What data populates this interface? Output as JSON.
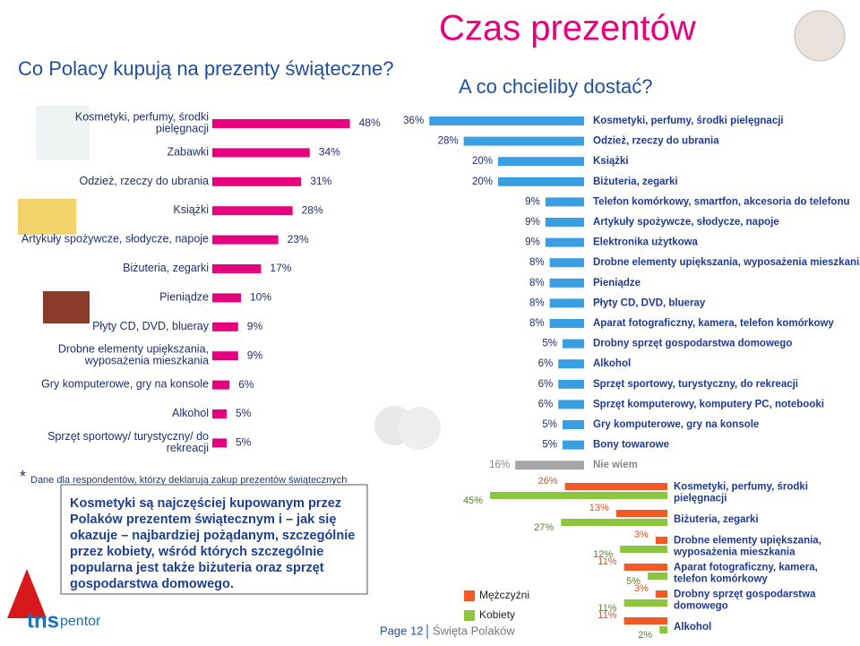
{
  "header": {
    "title": "Czas prezentów",
    "left_question": "Co Polacy kupują na prezenty świąteczne?",
    "right_question": "A co chcieliby dostać?"
  },
  "chart_data": [
    {
      "type": "bar",
      "orientation": "horizontal",
      "color": "#e5007e",
      "categories": [
        "Kosmetyki, perfumy, środki pielęgnacji",
        "Zabawki",
        "Odzież, rzeczy do ubrania",
        "Książki",
        "Artykuły spożywcze, słodycze, napoje",
        "Biżuteria, zegarki",
        "Pieniądze",
        "Płyty CD, DVD, blueray",
        "Drobne elementy upiększania, wyposażenia mieszkania",
        "Gry komputerowe, gry na konsole",
        "Alkohol",
        "Sprzęt sportowy/ turystyczny/ do rekreacji"
      ],
      "values": [
        48,
        34,
        31,
        28,
        23,
        17,
        10,
        9,
        9,
        6,
        5,
        5
      ],
      "value_labels": [
        "48%",
        "34%",
        "31%",
        "28%",
        "23%",
        "17%",
        "10%",
        "9%",
        "9%",
        "6%",
        "5%",
        "5%"
      ]
    },
    {
      "type": "bar",
      "orientation": "horizontal",
      "color": "#3a9ee2",
      "other_color": "#a6a6a6",
      "categories": [
        "Kosmetyki, perfumy, środki pielęgnacji",
        "Odzież, rzeczy do ubrania",
        "Książki",
        "Biżuteria, zegarki",
        "Telefon komórkowy, smartfon, akcesoria do telefonu",
        "Artykuły spożywcze, słodycze, napoje",
        "Elektronika użytkowa",
        "Drobne elementy upiększania, wyposażenia mieszkania",
        "Pieniądze",
        "Płyty CD, DVD, blueray",
        "Aparat fotograficzny, kamera, telefon komórkowy",
        "Drobny sprzęt gospodarstwa domowego",
        "Alkohol",
        "Sprzęt sportowy, turystyczny, do rekreacji",
        "Sprzęt komputerowy, komputery PC, notebooki",
        "Gry komputerowe, gry na konsole",
        "Bony towarowe",
        "Nie wiem"
      ],
      "values": [
        36,
        28,
        20,
        20,
        9,
        9,
        9,
        8,
        8,
        8,
        8,
        5,
        6,
        6,
        6,
        5,
        5,
        16
      ],
      "value_labels": [
        "36%",
        "28%",
        "20%",
        "20%",
        "9%",
        "9%",
        "9%",
        "8%",
        "8%",
        "8%",
        "8%",
        "5%",
        "6%",
        "6%",
        "6%",
        "5%",
        "5%",
        "16%"
      ]
    },
    {
      "type": "grouped-bar",
      "orientation": "horizontal",
      "categories": [
        "Kosmetyki, perfumy, środki pielęgnacji",
        "Biżuteria, zegarki",
        "Drobne elementy upiększania, wyposażenia mieszkania",
        "Aparat fotograficzny, kamera, telefon komórkowy",
        "Drobny sprzęt gospodarstwa domowego",
        "Alkohol"
      ],
      "series": [
        {
          "name": "Mężczyźni",
          "color": "#f15a24",
          "values": [
            26,
            13,
            3,
            11,
            3,
            11
          ],
          "value_labels": [
            "26%",
            "13%",
            "3%",
            "11%",
            "3%",
            "11%"
          ]
        },
        {
          "name": "Kobiety",
          "color": "#8cc63f",
          "values": [
            45,
            27,
            12,
            5,
            11,
            2
          ],
          "value_labels": [
            "45%",
            "27%",
            "12%",
            "5%",
            "11%",
            "2%"
          ]
        }
      ]
    }
  ],
  "note": "Dane dla respondentów, którzy deklarują zakup prezentów świątecznych",
  "note_marker": "*",
  "callout": "Kosmetyki są najczęściej kupowanym przez Polaków prezentem świątecznym i – jak się okazuje – najbardziej pożądanym, szczególnie przez kobiety, wśród których szczególnie popularna jest także biżuteria oraz sprzęt gospodarstwa domowego.",
  "footer": {
    "page": "Page 12",
    "section": "Święta Polaków"
  },
  "logo": {
    "brand": "tns",
    "sub": "pentor"
  }
}
